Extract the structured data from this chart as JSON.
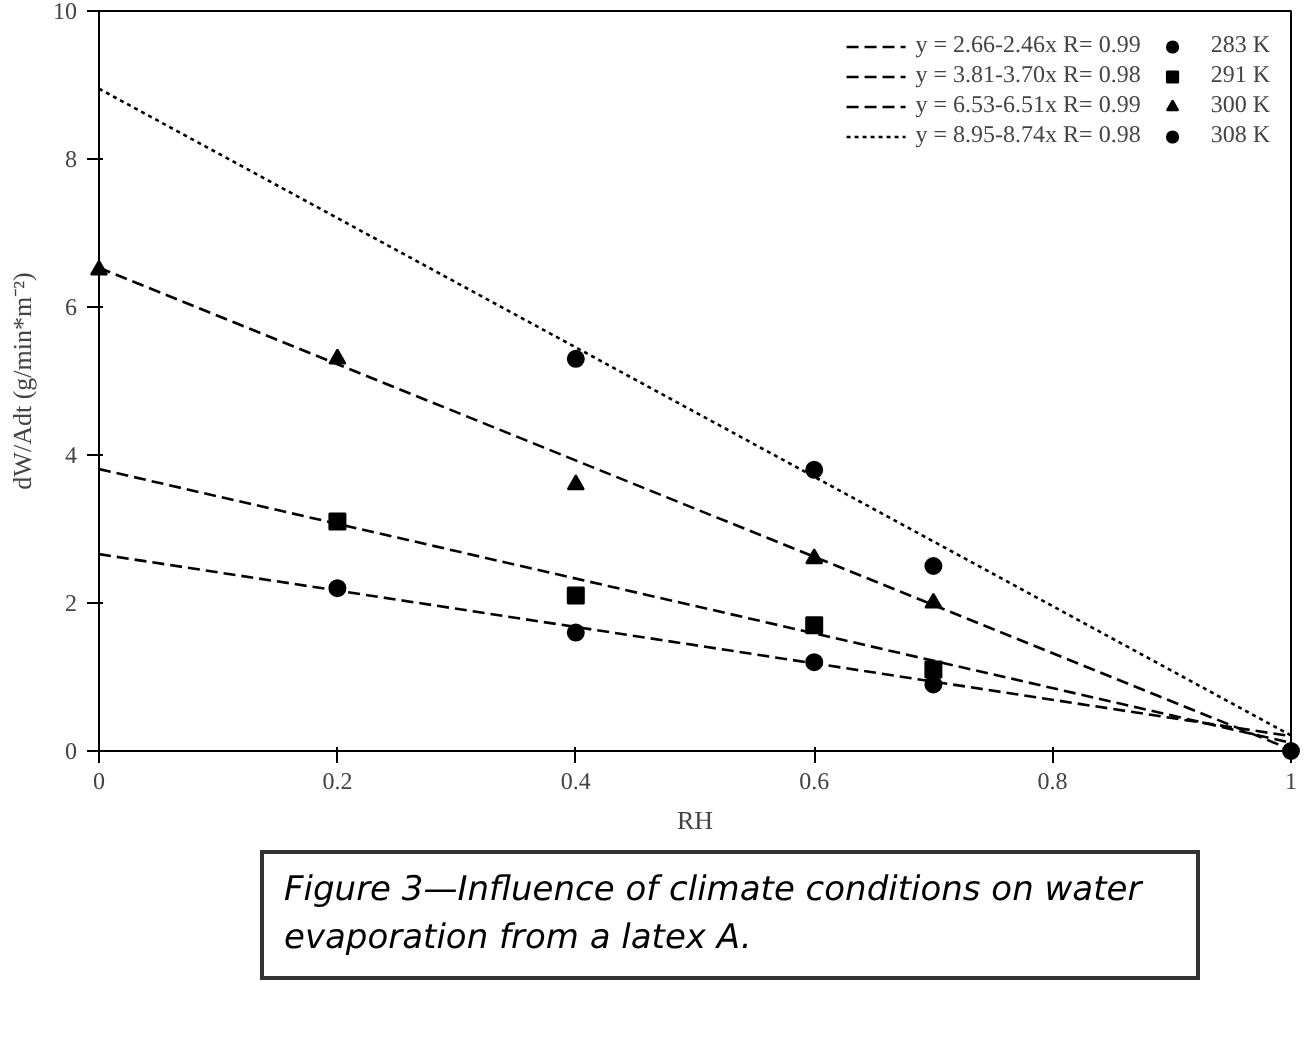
{
  "chart_data": {
    "type": "scatter",
    "xlabel": "RH",
    "ylabel": "dW/Adt (g/min*m⁻²)",
    "xlim": [
      0,
      1
    ],
    "ylim": [
      0,
      10
    ],
    "xticks": [
      0,
      0.2,
      0.4,
      0.6,
      0.8,
      1
    ],
    "yticks": [
      0,
      2,
      4,
      6,
      8,
      10
    ],
    "grid": false,
    "legend": "top right",
    "series": [
      {
        "name": "y = 2.66-2.46x R= 0.99",
        "type": "line",
        "line_style": "dashed",
        "marker": "none",
        "color": "#000000",
        "x": [
          0,
          1
        ],
        "values": [
          2.66,
          0.2
        ]
      },
      {
        "name": "y = 3.81-3.70x R= 0.98",
        "type": "line",
        "line_style": "dashed",
        "marker": "none",
        "color": "#000000",
        "x": [
          0,
          1
        ],
        "values": [
          3.81,
          0.11
        ]
      },
      {
        "name": "y = 6.53-6.51x R= 0.99",
        "type": "line",
        "line_style": "dashed",
        "marker": "none",
        "color": "#000000",
        "x": [
          0,
          1
        ],
        "values": [
          6.53,
          0.02
        ]
      },
      {
        "name": "y = 8.95-8.74x R= 0.98",
        "type": "line",
        "line_style": "dotted",
        "marker": "none",
        "color": "#000000",
        "x": [
          0,
          1
        ],
        "values": [
          8.95,
          0.21
        ]
      },
      {
        "name": "283 K",
        "marker": "circle",
        "color": "#000000",
        "x": [
          0.2,
          0.4,
          0.6,
          0.7
        ],
        "values": [
          2.2,
          1.6,
          1.2,
          0.9
        ]
      },
      {
        "name": "291 K",
        "marker": "square",
        "color": "#000000",
        "x": [
          0.2,
          0.4,
          0.6,
          0.7
        ],
        "values": [
          3.1,
          2.1,
          1.7,
          1.1
        ]
      },
      {
        "name": "300 K",
        "marker": "triangle",
        "color": "#000000",
        "x": [
          0,
          0.2,
          0.4,
          0.6,
          0.7
        ],
        "values": [
          6.5,
          5.3,
          3.6,
          2.6,
          2.0
        ]
      },
      {
        "name": "308 K",
        "marker": "circle",
        "color": "#000000",
        "x": [
          0.4,
          0.6,
          0.7,
          1
        ],
        "values": [
          5.3,
          3.8,
          2.5,
          0
        ]
      }
    ],
    "annotations": [
      "Figure 3—Influence of climate conditions on water evaporation from a latex A."
    ]
  }
}
